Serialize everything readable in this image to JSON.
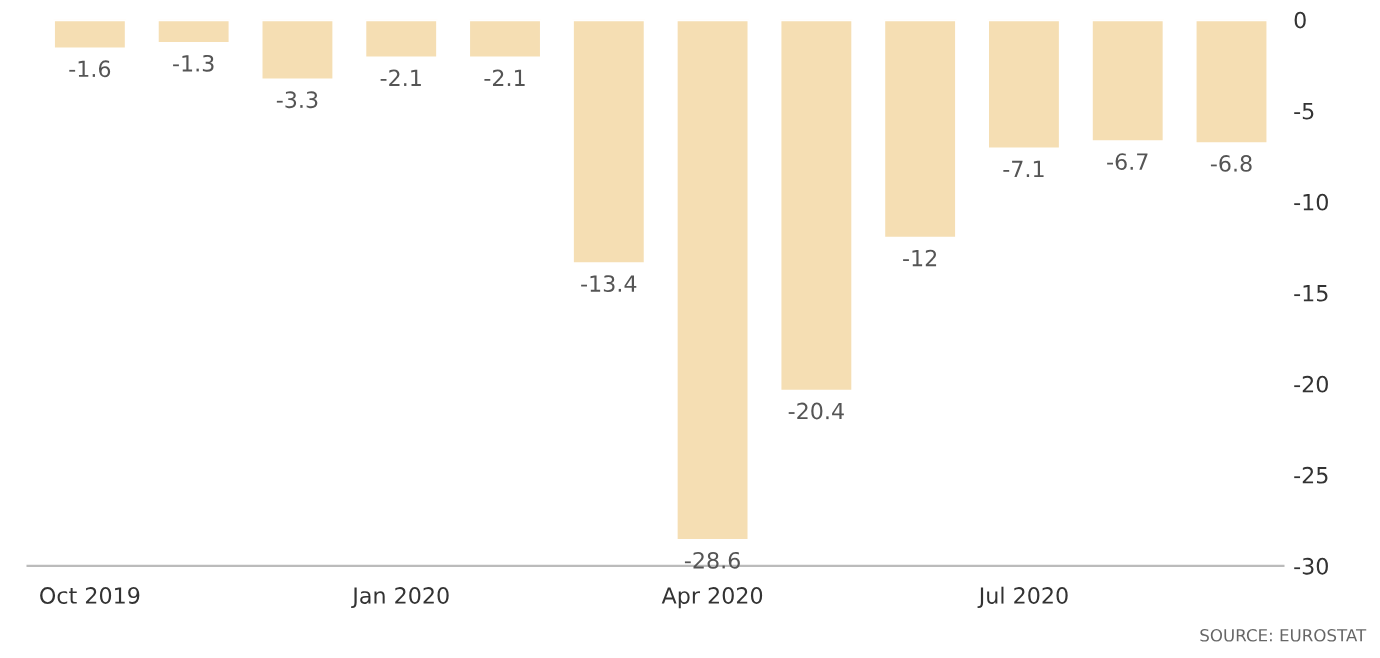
{
  "chart_data": {
    "type": "bar",
    "categories": [
      "Oct 2019",
      null,
      null,
      "Jan 2020",
      null,
      null,
      "Apr 2020",
      null,
      null,
      "Jul 2020",
      null,
      null
    ],
    "values": [
      -1.6,
      -1.3,
      -3.3,
      -2.1,
      -2.1,
      -13.4,
      -28.6,
      -20.4,
      -12,
      -7.1,
      -6.7,
      -6.8
    ],
    "color": "#f5deb3",
    "data_labels": true,
    "ylim": [
      -30,
      0
    ],
    "yticks": [
      -30,
      -25,
      -20,
      -15,
      -10,
      -5,
      0
    ],
    "grid": false,
    "annotations": [
      "SOURCE: EUROSTAT"
    ]
  }
}
